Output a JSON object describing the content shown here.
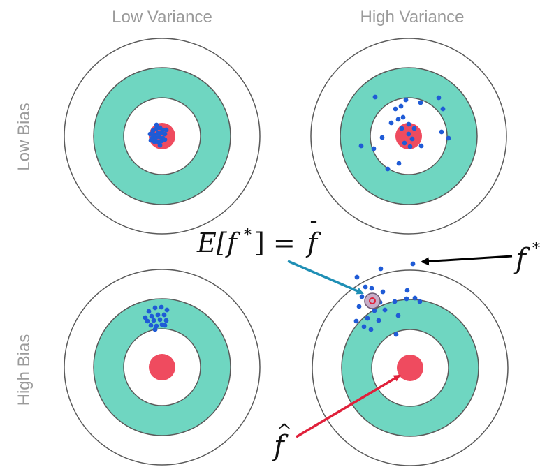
{
  "columns": {
    "left": "Low Variance",
    "right": "High Variance"
  },
  "rows": {
    "top": "Low Bias",
    "bottom": "High Bias"
  },
  "annotations": {
    "expectation_lhs": "E[f",
    "expectation_sup": "*",
    "expectation_mid": "] = ",
    "expectation_rhs": "f",
    "f_star": "f",
    "f_star_sup": "*",
    "f_hat": "f",
    "f_hat_accent": "^",
    "f_bar_accent": "¯"
  },
  "colors": {
    "ring_teal": "#6fd6c1",
    "bullseye": "#ef4b5f",
    "dot": "#1f5bd6",
    "ring_stroke": "#5a5a5a",
    "teal_arrow": "#1f8fb5",
    "red_arrow": "#e0203a",
    "black_arrow": "#000000"
  },
  "targets": [
    {
      "id": "low-bias-low-variance",
      "row": "Low Bias",
      "column": "Low Variance"
    },
    {
      "id": "low-bias-high-variance",
      "row": "Low Bias",
      "column": "High Variance"
    },
    {
      "id": "high-bias-low-variance",
      "row": "High Bias",
      "column": "Low Variance"
    },
    {
      "id": "high-bias-high-variance",
      "row": "High Bias",
      "column": "High Variance"
    }
  ]
}
